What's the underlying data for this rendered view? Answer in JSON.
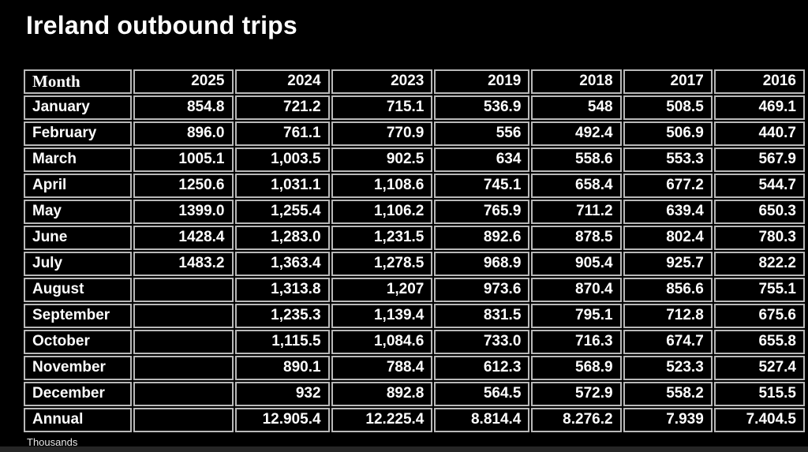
{
  "title": "Ireland outbound trips",
  "footnote": "Thousands",
  "colors": {
    "background": "#000000",
    "text": "#ffffff",
    "gridline": "#b9b9b9"
  },
  "chart_data": {
    "type": "table",
    "title": "Ireland outbound trips",
    "unit_note": "Thousands",
    "columns": [
      "Month",
      "2025",
      "2024",
      "2023",
      "2019",
      "2018",
      "2017",
      "2016"
    ],
    "rows": [
      [
        "January",
        "854.8",
        "721.2",
        "715.1",
        "536.9",
        "548",
        "508.5",
        "469.1"
      ],
      [
        "February",
        "896.0",
        "761.1",
        "770.9",
        "556",
        "492.4",
        "506.9",
        "440.7"
      ],
      [
        "March",
        "1005.1",
        "1,003.5",
        "902.5",
        "634",
        "558.6",
        "553.3",
        "567.9"
      ],
      [
        "April",
        "1250.6",
        "1,031.1",
        "1,108.6",
        "745.1",
        "658.4",
        "677.2",
        "544.7"
      ],
      [
        "May",
        "1399.0",
        "1,255.4",
        "1,106.2",
        "765.9",
        "711.2",
        "639.4",
        "650.3"
      ],
      [
        "June",
        "1428.4",
        "1,283.0",
        "1,231.5",
        "892.6",
        "878.5",
        "802.4",
        "780.3"
      ],
      [
        "July",
        "1483.2",
        "1,363.4",
        "1,278.5",
        "968.9",
        "905.4",
        "925.7",
        "822.2"
      ],
      [
        "August",
        "",
        "1,313.8",
        "1,207",
        "973.6",
        "870.4",
        "856.6",
        "755.1"
      ],
      [
        "September",
        "",
        "1,235.3",
        "1,139.4",
        "831.5",
        "795.1",
        "712.8",
        "675.6"
      ],
      [
        "October",
        "",
        "1,115.5",
        "1,084.6",
        "733.0",
        "716.3",
        "674.7",
        "655.8"
      ],
      [
        "November",
        "",
        "890.1",
        "788.4",
        "612.3",
        "568.9",
        "523.3",
        "527.4"
      ],
      [
        "December",
        "",
        "932",
        "892.8",
        "564.5",
        "572.9",
        "558.2",
        "515.5"
      ],
      [
        "Annual",
        "",
        "12.905.4",
        "12.225.4",
        "8.814.4",
        "8.276.2",
        "7.939",
        "7.404.5"
      ]
    ]
  }
}
